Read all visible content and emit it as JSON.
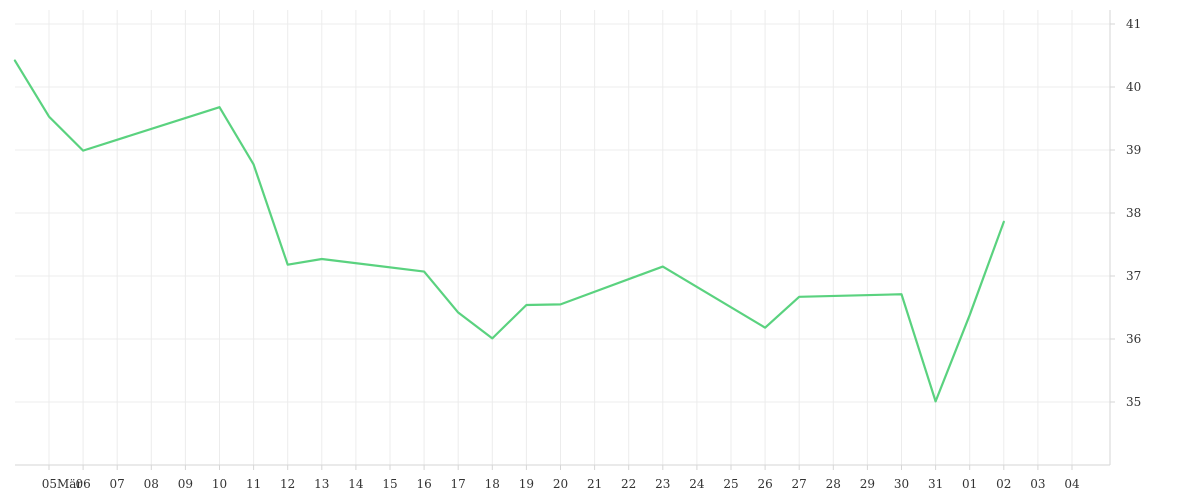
{
  "chart_data": {
    "type": "line",
    "title": "",
    "xlabel": "",
    "ylabel": "",
    "x_tick_labels": [
      "05",
      "Mär",
      "06",
      "07",
      "08",
      "09",
      "10",
      "11",
      "12",
      "13",
      "14",
      "15",
      "16",
      "17",
      "18",
      "19",
      "20",
      "21",
      "22",
      "23",
      "24",
      "25",
      "26",
      "27",
      "28",
      "29",
      "30",
      "31",
      "01",
      "02",
      "03",
      "04"
    ],
    "y_ticks": [
      35,
      36,
      37,
      38,
      39,
      40,
      41
    ],
    "ylim": [
      34,
      41.2
    ],
    "y_axis_position": "right",
    "grid": true,
    "legend": "none",
    "line_color": "#5ad27f",
    "series": [
      {
        "x": [
          "2024-03-04",
          "2024-03-05",
          "2024-03-06",
          "2024-03-10",
          "2024-03-11",
          "2024-03-12",
          "2024-03-13",
          "2024-03-16",
          "2024-03-17",
          "2024-03-18",
          "2024-03-19",
          "2024-03-20",
          "2024-03-23",
          "2024-03-26",
          "2024-03-27",
          "2024-03-30",
          "2024-03-31",
          "2024-04-01",
          "2024-04-02"
        ],
        "values": [
          40.42,
          39.53,
          38.99,
          39.68,
          38.77,
          37.18,
          37.27,
          37.07,
          36.42,
          36.01,
          36.54,
          36.55,
          37.15,
          36.18,
          36.67,
          36.71,
          35.01,
          36.38,
          37.86
        ]
      }
    ]
  }
}
